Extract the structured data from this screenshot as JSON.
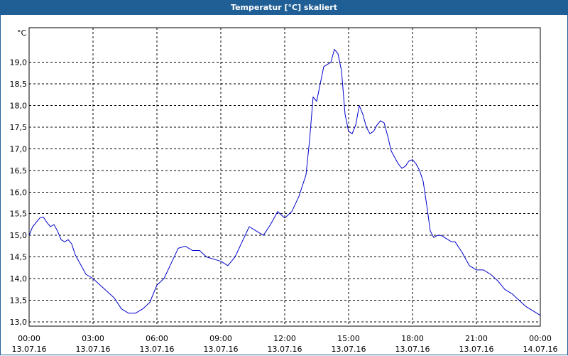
{
  "window": {
    "title": "Temperatur [°C] skaliert"
  },
  "colors": {
    "titlebar": "#1f5f96",
    "line": "#0000cc",
    "grid": "#000000"
  },
  "chart_data": {
    "type": "line",
    "title": "Temperatur [°C] skaliert",
    "ylabel": "°C",
    "xlabel": "",
    "grid": true,
    "ylim": [
      12.9,
      19.8
    ],
    "xlim": [
      "13.07.16 00:00",
      "14.07.16 00:00"
    ],
    "y_ticks": [
      "13,0",
      "13,5",
      "14,0",
      "14,5",
      "15,0",
      "15,5",
      "16,0",
      "16,5",
      "17,0",
      "17,5",
      "18,0",
      "18,5",
      "19,0"
    ],
    "x_ticks": [
      {
        "time": "00:00",
        "date": "13.07.16"
      },
      {
        "time": "03:00",
        "date": "13.07.16"
      },
      {
        "time": "06:00",
        "date": "13.07.16"
      },
      {
        "time": "09:00",
        "date": "13.07.16"
      },
      {
        "time": "12:00",
        "date": "13.07.16"
      },
      {
        "time": "15:00",
        "date": "13.07.16"
      },
      {
        "time": "18:00",
        "date": "13.07.16"
      },
      {
        "time": "21:00",
        "date": "13.07.16"
      },
      {
        "time": "00:00",
        "date": "14.07.16"
      }
    ],
    "series": [
      {
        "x": [
          "00:00",
          "00:10",
          "00:20",
          "00:30",
          "00:40",
          "00:50",
          "01:00",
          "01:10",
          "01:20",
          "01:30",
          "01:40",
          "01:50",
          "02:00",
          "02:10",
          "02:20",
          "02:30",
          "02:40",
          "02:50",
          "03:00",
          "03:20",
          "03:40",
          "04:00",
          "04:20",
          "04:40",
          "05:00",
          "05:20",
          "05:40",
          "06:00",
          "06:20",
          "06:40",
          "07:00",
          "07:20",
          "07:40",
          "08:00",
          "08:20",
          "08:40",
          "09:00",
          "09:20",
          "09:40",
          "10:00",
          "10:20",
          "10:40",
          "11:00",
          "11:20",
          "11:40",
          "12:00",
          "12:20",
          "12:40",
          "13:00",
          "13:10",
          "13:20",
          "13:30",
          "13:40",
          "13:50",
          "14:00",
          "14:10",
          "14:20",
          "14:30",
          "14:40",
          "14:50",
          "15:00",
          "15:10",
          "15:20",
          "15:30",
          "15:40",
          "15:50",
          "16:00",
          "16:10",
          "16:20",
          "16:30",
          "16:40",
          "16:50",
          "17:00",
          "17:10",
          "17:20",
          "17:30",
          "17:40",
          "17:50",
          "18:00",
          "18:10",
          "18:20",
          "18:30",
          "18:40",
          "18:50",
          "19:00",
          "19:10",
          "19:20",
          "19:30",
          "19:40",
          "19:50",
          "20:00",
          "20:20",
          "20:40",
          "21:00",
          "21:20",
          "21:40",
          "22:00",
          "22:20",
          "22:40",
          "23:00",
          "23:20",
          "23:40",
          "24:00"
        ],
        "y": [
          15.0,
          15.2,
          15.3,
          15.4,
          15.42,
          15.3,
          15.2,
          15.25,
          15.1,
          14.9,
          14.85,
          14.9,
          14.8,
          14.55,
          14.4,
          14.25,
          14.1,
          14.05,
          14.0,
          13.85,
          13.7,
          13.55,
          13.3,
          13.2,
          13.2,
          13.3,
          13.45,
          13.85,
          14.0,
          14.35,
          14.7,
          14.75,
          14.65,
          14.65,
          14.5,
          14.45,
          14.4,
          14.3,
          14.5,
          14.85,
          15.2,
          15.1,
          15.0,
          15.25,
          15.55,
          15.4,
          15.55,
          15.9,
          16.4,
          17.2,
          18.2,
          18.1,
          18.5,
          18.9,
          18.95,
          19.0,
          19.3,
          19.2,
          18.8,
          17.8,
          17.4,
          17.35,
          17.55,
          18.0,
          17.8,
          17.5,
          17.35,
          17.4,
          17.55,
          17.65,
          17.6,
          17.3,
          16.95,
          16.8,
          16.65,
          16.55,
          16.6,
          16.72,
          16.75,
          16.65,
          16.5,
          16.25,
          15.7,
          15.1,
          14.95,
          15.0,
          15.0,
          14.95,
          14.9,
          14.85,
          14.85,
          14.6,
          14.3,
          14.2,
          14.2,
          14.1,
          13.95,
          13.75,
          13.65,
          13.5,
          13.35,
          13.25,
          13.15
        ]
      }
    ]
  }
}
